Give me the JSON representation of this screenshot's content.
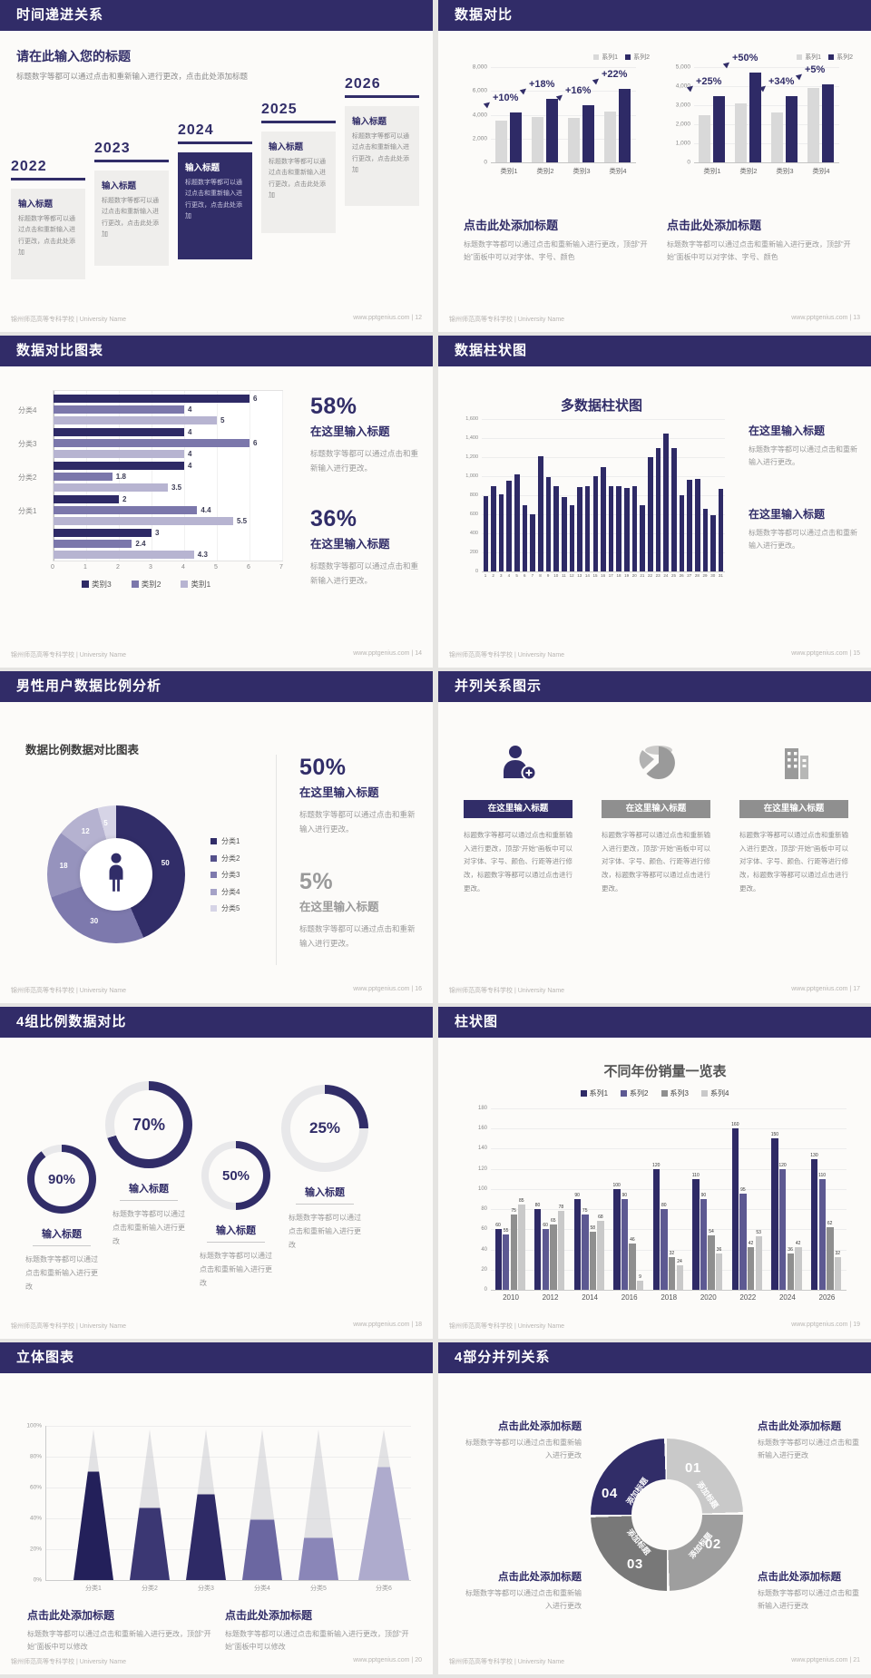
{
  "footer": {
    "org": "锦州师范高等专科学校 | University Name",
    "site": "www.pptgenius.com"
  },
  "colors": {
    "navy": "#312d68",
    "barNavy": "#2e2a66",
    "barGray": "#d9d9d9",
    "purpleMid": "#7b77ab",
    "purpleLight": "#b7b4d1",
    "headerBg": "#312c68"
  },
  "s1": {
    "header": "时间递进关系",
    "page": "12",
    "intro_title": "请在此输入您的标题",
    "intro_body": "标题数字等都可以通过点击和重新输入进行更改，点击此处添加标题",
    "years": [
      "2022",
      "2023",
      "2024",
      "2025",
      "2026"
    ],
    "item_title": "输入标题",
    "item_body": "标题数字等都可以通过点击和重新输入进行更改，点击此处添加",
    "highlight_index": 2
  },
  "s2": {
    "header": "数据对比",
    "page": "13",
    "legend": [
      {
        "label": "系列1",
        "color": "#d9d9d9"
      },
      {
        "label": "系列2",
        "color": "#2e2a66"
      }
    ],
    "charts": [
      {
        "type": "bar",
        "ymax": 8000,
        "yticks": [
          "8,000",
          "6,000",
          "4,000",
          "2,000",
          "0"
        ],
        "categories": [
          "类别1",
          "类别2",
          "类别3",
          "类别4"
        ],
        "series": [
          {
            "name": "系列1",
            "values": [
              3500,
              3800,
              3700,
              4300
            ]
          },
          {
            "name": "系列2",
            "values": [
              4200,
              5300,
              4800,
              6200
            ]
          }
        ],
        "pct_labels": [
          "+10%",
          "+18%",
          "+16%",
          "+22%"
        ]
      },
      {
        "type": "bar",
        "ymax": 5000,
        "yticks": [
          "5,000",
          "4,000",
          "3,000",
          "2,000",
          "1,000",
          "0"
        ],
        "categories": [
          "类别1",
          "类别2",
          "类别3",
          "类别4"
        ],
        "series": [
          {
            "name": "系列1",
            "values": [
              2500,
              3100,
              2600,
              3900
            ]
          },
          {
            "name": "系列2",
            "values": [
              3500,
              4700,
              3500,
              4100
            ]
          }
        ],
        "pct_labels": [
          "+25%",
          "+50%",
          "+34%",
          "+5%"
        ]
      }
    ],
    "block_title": "点击此处添加标题",
    "block_body": "标题数字等都可以通过点击和重新输入进行更改，顶部“开始”面板中可以对字体、字号、颜色"
  },
  "s3": {
    "header": "数据对比图表",
    "page": "14",
    "chart": {
      "type": "bar",
      "orientation": "horizontal",
      "xlim": [
        0,
        7
      ],
      "xticks": [
        "0",
        "1",
        "2",
        "3",
        "4",
        "5",
        "6",
        "7"
      ],
      "group_labels": [
        "分类4",
        "分类3",
        "分类2",
        "分类1",
        ""
      ],
      "series_order": [
        "类别3",
        "类别2",
        "类别1"
      ],
      "groups": [
        [
          6,
          4,
          5
        ],
        [
          4,
          6,
          4
        ],
        [
          4,
          1.8,
          3.5
        ],
        [
          2,
          4.4,
          5.5
        ],
        [
          3,
          2.4,
          4.3
        ]
      ]
    },
    "legend": [
      {
        "label": "类别3",
        "color": "#2e2a66"
      },
      {
        "label": "类别2",
        "color": "#7b77ab"
      },
      {
        "label": "类别1",
        "color": "#b7b4d1"
      }
    ],
    "stats": [
      {
        "pct": "58%",
        "title": "在这里输入标题",
        "body": "标题数字等都可以通过点击和重新输入进行更改。"
      },
      {
        "pct": "36%",
        "title": "在这里输入标题",
        "body": "标题数字等都可以通过点击和重新输入进行更改。"
      }
    ]
  },
  "s4": {
    "header": "数据柱状图",
    "page": "15",
    "chart_title": "多数据柱状图",
    "chart": {
      "type": "bar",
      "ymax": 1600,
      "yticks": [
        "1,600",
        "1,400",
        "1,200",
        "1,000",
        "800",
        "600",
        "400",
        "200",
        "0"
      ],
      "x": [
        "1",
        "2",
        "3",
        "4",
        "5",
        "6",
        "7",
        "8",
        "9",
        "10",
        "11",
        "12",
        "13",
        "14",
        "15",
        "16",
        "17",
        "18",
        "19",
        "20",
        "21",
        "22",
        "23",
        "24",
        "25",
        "26",
        "27",
        "28",
        "29",
        "30",
        "31"
      ],
      "values": [
        790,
        900,
        810,
        950,
        1020,
        700,
        600,
        1210,
        990,
        900,
        780,
        700,
        890,
        900,
        1000,
        1100,
        900,
        900,
        880,
        900,
        700,
        1200,
        1300,
        1450,
        1300,
        800,
        960,
        970,
        660,
        590,
        870
      ]
    },
    "blocks": [
      {
        "title": "在这里输入标题",
        "body": "标题数字等都可以通过点击和重新输入进行更改。",
        "accent": true
      },
      {
        "title": "在这里输入标题",
        "body": "标题数字等都可以通过点击和重新输入进行更改。",
        "accent": false
      }
    ]
  },
  "s5": {
    "header": "男性用户数据比例分析",
    "page": "16",
    "chart_title": "数据比例数据对比图表",
    "chart": {
      "type": "pie",
      "donut": true,
      "slices": [
        {
          "label": "50",
          "value": 50,
          "color": "#312d68"
        },
        {
          "label": "30",
          "value": 30,
          "color": "#7d79ad"
        },
        {
          "label": "18",
          "value": 18,
          "color": "#9693bd"
        },
        {
          "label": "12",
          "value": 12,
          "color": "#b5b2d0"
        },
        {
          "label": "5",
          "value": 5,
          "color": "#d6d4e6"
        }
      ]
    },
    "legend": [
      {
        "label": "分类1",
        "color": "#312d68"
      },
      {
        "label": "分类2",
        "color": "#54508a"
      },
      {
        "label": "分类3",
        "color": "#7d79ad"
      },
      {
        "label": "分类4",
        "color": "#a5a2c7"
      },
      {
        "label": "分类5",
        "color": "#d6d4e6"
      }
    ],
    "center_icon": "male-person-icon",
    "stats": [
      {
        "pct": "50%",
        "title": "在这里输入标题",
        "body": "标题数字等都可以通过点击和重新输入进行更改。",
        "accent": true
      },
      {
        "pct": "5%",
        "title": "在这里输入标题",
        "body": "标题数字等都可以通过点击和重新输入进行更改。",
        "accent": false
      }
    ]
  },
  "s6": {
    "header": "并列关系图示",
    "page": "17",
    "columns": [
      {
        "icon": "person-add-icon",
        "icon_color": "#312d68",
        "title": "在这里输入标题",
        "bar_color": "#312d68"
      },
      {
        "icon": "pie-chart-icon",
        "icon_color": "#9a9a9a",
        "title": "在这里输入标题",
        "bar_color": "#8f8f8f"
      },
      {
        "icon": "building-icon",
        "icon_color": "#9a9a9a",
        "title": "在这里输入标题",
        "bar_color": "#8f8f8f"
      }
    ],
    "body": "标题数字等都可以通过点击和重新输入进行更改，顶部“开始”画板中可以对字体、字号、颜色、行距等进行修改，标题数字等都可以通过点击进行更改。"
  },
  "s7": {
    "header": "4组比例数据对比",
    "page": "18",
    "rings": [
      {
        "pct": 90,
        "pct_label": "90%"
      },
      {
        "pct": 70,
        "pct_label": "70%"
      },
      {
        "pct": 50,
        "pct_label": "50%"
      },
      {
        "pct": 25,
        "pct_label": "25%"
      }
    ],
    "ring_color": "#312d68",
    "track_color": "#e8e8ea",
    "item_title": "输入标题",
    "item_body": "标题数字等都可以通过点击和重新输入进行更改"
  },
  "s8": {
    "header": "柱状图",
    "page": "19",
    "chart_title": "不同年份销量一览表",
    "legend": [
      {
        "label": "系列1",
        "color": "#2e2a66"
      },
      {
        "label": "系列2",
        "color": "#5d5992"
      },
      {
        "label": "系列3",
        "color": "#8f8f8f"
      },
      {
        "label": "系列4",
        "color": "#c9c9c9"
      }
    ],
    "chart": {
      "type": "bar",
      "ymax": 180,
      "ytick_step": 20,
      "categories": [
        "2010",
        "2012",
        "2014",
        "2016",
        "2018",
        "2020",
        "2022",
        "2024",
        "2026"
      ],
      "series": [
        {
          "name": "系列1",
          "color": "#2e2a66",
          "values": [
            60,
            80,
            90,
            100,
            120,
            110,
            160,
            150,
            130
          ]
        },
        {
          "name": "系列2",
          "color": "#5d5992",
          "values": [
            55,
            60,
            75,
            90,
            80,
            90,
            95,
            120,
            110
          ]
        },
        {
          "name": "系列3",
          "color": "#8f8f8f",
          "values": [
            75,
            65,
            58,
            46,
            32,
            54,
            42,
            36,
            62
          ]
        },
        {
          "name": "系列4",
          "color": "#c9c9c9",
          "values": [
            85,
            78,
            68,
            9,
            24,
            36,
            53,
            42,
            32
          ]
        }
      ]
    }
  },
  "s9": {
    "header": "立体图表",
    "page": "20",
    "chart": {
      "type": "cone",
      "yticks": [
        "100%",
        "80%",
        "60%",
        "40%",
        "20%",
        "0%"
      ],
      "cones": [
        {
          "label": "分类1",
          "fill_pct": 72,
          "color": "#23205a"
        },
        {
          "label": "分类2",
          "fill_pct": 48,
          "color": "#3b3773"
        },
        {
          "label": "分类3",
          "fill_pct": 57,
          "color": "#2e2a66"
        },
        {
          "label": "分类4",
          "fill_pct": 40,
          "color": "#6b67a1"
        },
        {
          "label": "分类5",
          "fill_pct": 28,
          "color": "#8a86b8"
        },
        {
          "label": "分类6",
          "fill_pct": 75,
          "color": "#aeabcd"
        }
      ]
    },
    "block_title": "点击此处添加标题",
    "block_body": "标题数字等都可以通过点击和重新输入进行更改，顶部“开始”面板中可以修改"
  },
  "s10": {
    "header": "4部分并列关系",
    "page": "21",
    "segments": [
      {
        "num": "01",
        "label": "添加标题",
        "color": "#c9c9c9"
      },
      {
        "num": "02",
        "label": "添加标题",
        "color": "#9e9e9e"
      },
      {
        "num": "03",
        "label": "添加标题",
        "color": "#787878"
      },
      {
        "num": "04",
        "label": "添加标题",
        "color": "#312d68"
      }
    ],
    "block_title": "点击此处添加标题",
    "block_body": "标题数字等都可以通过点击和重新输入进行更改"
  }
}
